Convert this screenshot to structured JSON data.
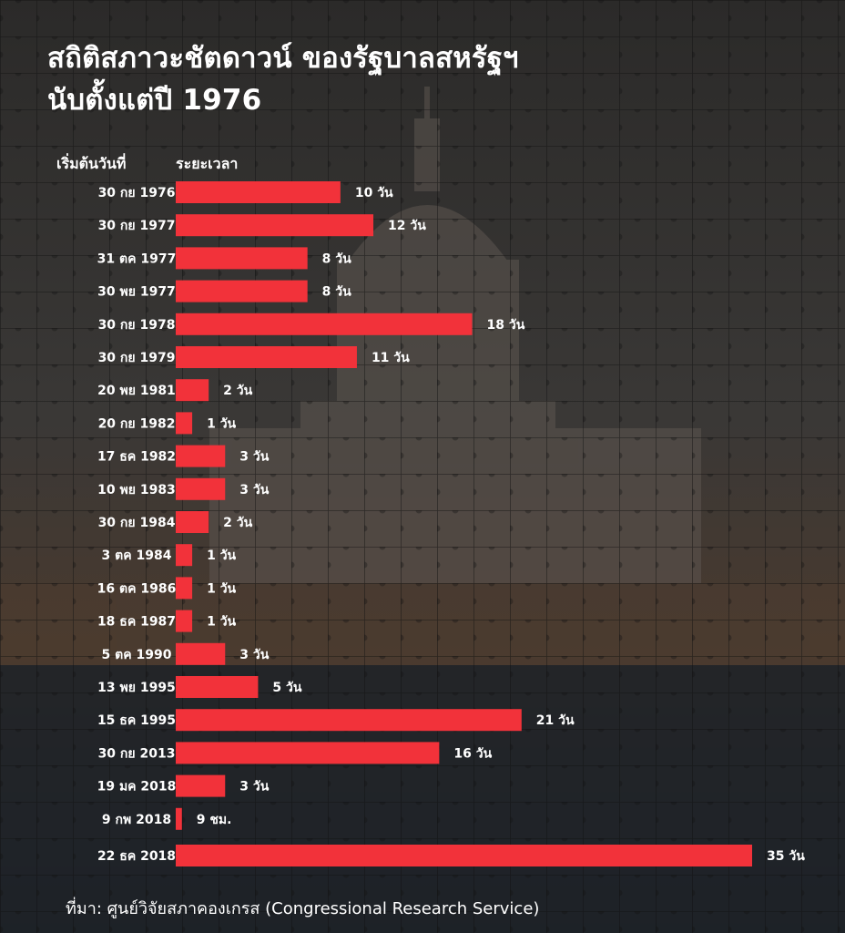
{
  "title_lines": [
    "สถิติสภาวะชัตดาวน์ ของรัฐบาลสหรัฐฯ",
    "นับตั้งแต่ปี 1976"
  ],
  "column_headers": {
    "start_date": "เริ่มต้นวันที่",
    "duration": "ระยะเวลา"
  },
  "source": "ที่มา: ศูนย์วิจัยสภาคองเกรส (Congressional Research Service)",
  "colors": {
    "bar": "#f2323a",
    "text": "#ffffff",
    "background": "#2a2826"
  },
  "chart_data": {
    "type": "bar",
    "orientation": "horizontal",
    "unit": "days",
    "categories": [
      "30 กย 1976",
      "30 กย 1977",
      "31 ตค 1977",
      "30 พย 1977",
      "30 กย 1978",
      "30 กย 1979",
      "20 พย 1981",
      "20 กย 1982",
      "17 ธค 1982",
      "10 พย 1983",
      "30 กย 1984",
      "3 ตค 1984",
      "16 ตค 1986",
      "18 ธค 1987",
      "5 ตค 1990",
      "13 พย 1995",
      "15 ธค 1995",
      "30 กย 2013",
      "19 มค 2018",
      "9 กพ 2018",
      "22 ธค 2018"
    ],
    "values": [
      10,
      12,
      8,
      8,
      18,
      11,
      2,
      1,
      3,
      3,
      2,
      1,
      1,
      1,
      3,
      5,
      21,
      16,
      3,
      0.375,
      35
    ],
    "labels": [
      "10 วัน",
      "12 วัน",
      "8 วัน",
      "8 วัน",
      "18 วัน",
      "11 วัน",
      "2 วัน",
      "1 วัน",
      "3 วัน",
      "3 วัน",
      "2 วัน",
      "1 วัน",
      "1 วัน",
      "1 วัน",
      "3 วัน",
      "5 วัน",
      "21 วัน",
      "16 วัน",
      "3 วัน",
      "9 ชม.",
      "35 วัน"
    ],
    "xlim": [
      0,
      35
    ],
    "grid": false,
    "legend": "none"
  }
}
